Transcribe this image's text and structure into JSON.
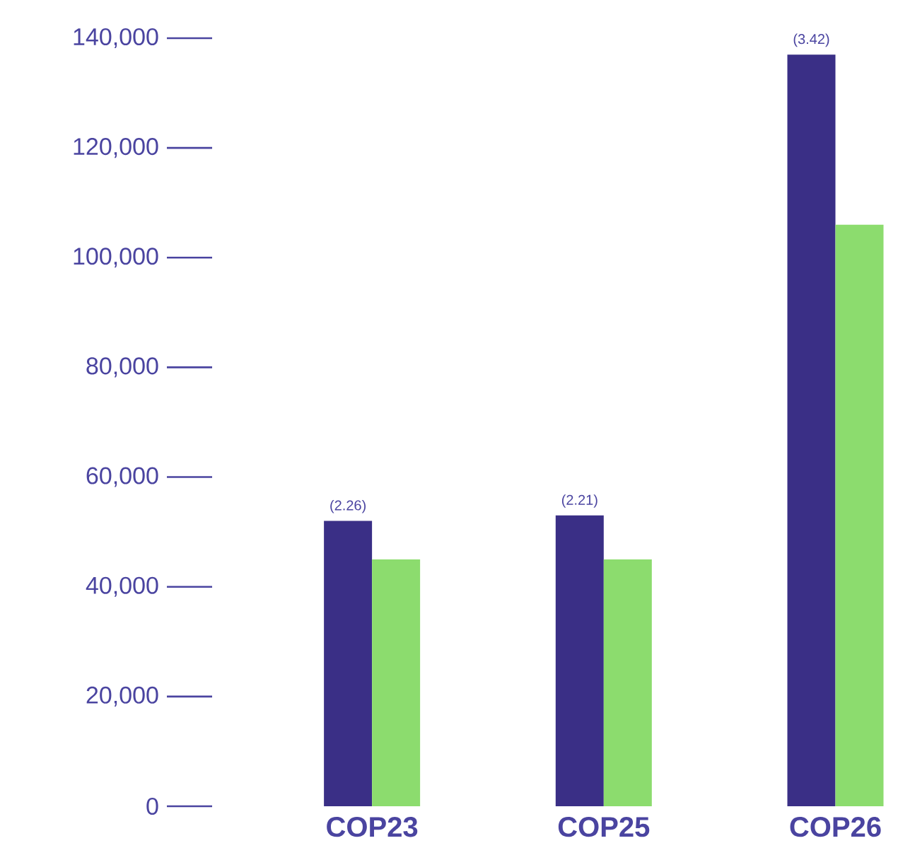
{
  "chart_data": {
    "type": "bar",
    "categories": [
      "COP23",
      "COP25",
      "COP26"
    ],
    "series": [
      {
        "color": "#3a2f86",
        "values": [
          52000,
          53000,
          137000
        ]
      },
      {
        "color": "#8cdc6e",
        "values": [
          45000,
          45000,
          106000
        ]
      }
    ],
    "annotations": [
      {
        "text": "(2.26)",
        "x": "COP23",
        "y": 52000
      },
      {
        "text": "(2.21)",
        "x": "COP25",
        "y": 53000
      },
      {
        "text": "(3.42)",
        "x": "COP26",
        "y": 137000
      }
    ],
    "ylim": [
      0,
      140000
    ],
    "yticks": [
      0,
      {
        "value": 20000,
        "label": "20,000"
      },
      {
        "value": 40000,
        "label": "40,000"
      },
      {
        "value": 60000,
        "label": "60,000"
      },
      {
        "value": 80000,
        "label": "80,000"
      },
      {
        "value": 100000,
        "label": "100,000"
      },
      {
        "value": 120000,
        "label": "120,000"
      },
      {
        "value": 140000,
        "label": "140,000"
      }
    ],
    "grid": false
  }
}
